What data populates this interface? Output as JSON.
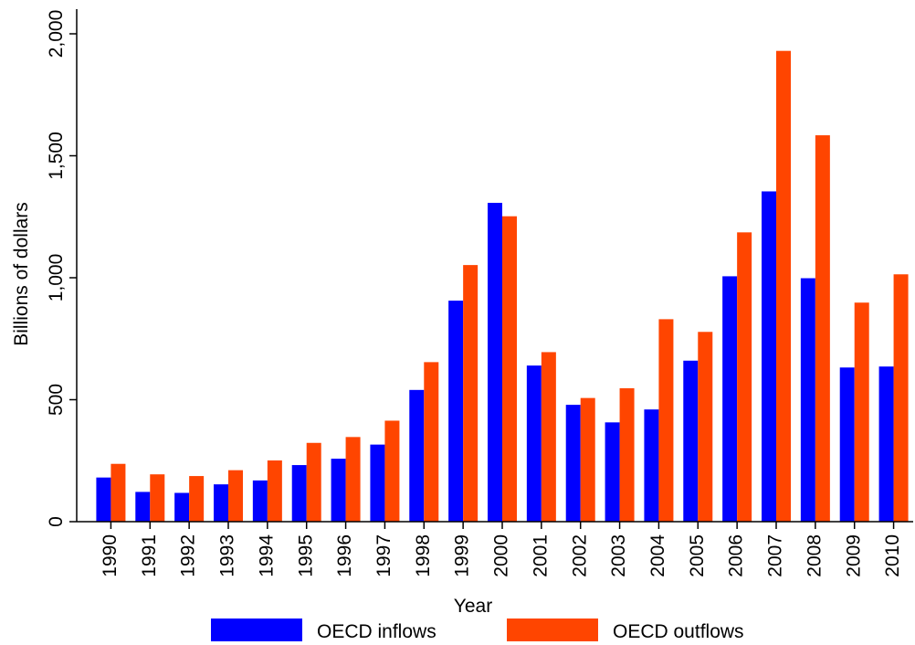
{
  "chart_data": {
    "type": "bar",
    "title": "",
    "xlabel": "Year",
    "ylabel": "Billions of dollars",
    "ylim": [
      0,
      2000
    ],
    "yticks": [
      0,
      500,
      1000,
      1500,
      2000
    ],
    "ytick_labels": [
      "0",
      "500",
      "1,000",
      "1,500",
      "2,000"
    ],
    "categories": [
      "1990",
      "1991",
      "1992",
      "1993",
      "1994",
      "1995",
      "1996",
      "1997",
      "1998",
      "1999",
      "2000",
      "2001",
      "2002",
      "2003",
      "2004",
      "2005",
      "2006",
      "2007",
      "2008",
      "2009",
      "2010"
    ],
    "series": [
      {
        "name": "OECD inflows",
        "color": "#0000ff",
        "values": [
          181,
          122,
          118,
          153,
          169,
          232,
          258,
          316,
          540,
          906,
          1307,
          640,
          479,
          407,
          460,
          660,
          1006,
          1354,
          998,
          632,
          636
        ]
      },
      {
        "name": "OECD outflows",
        "color": "#ff4500",
        "values": [
          237,
          194,
          187,
          211,
          251,
          323,
          347,
          414,
          654,
          1052,
          1252,
          695,
          507,
          547,
          830,
          778,
          1186,
          1930,
          1584,
          898,
          1014
        ]
      }
    ],
    "grid": false,
    "legend_position": "bottom"
  }
}
